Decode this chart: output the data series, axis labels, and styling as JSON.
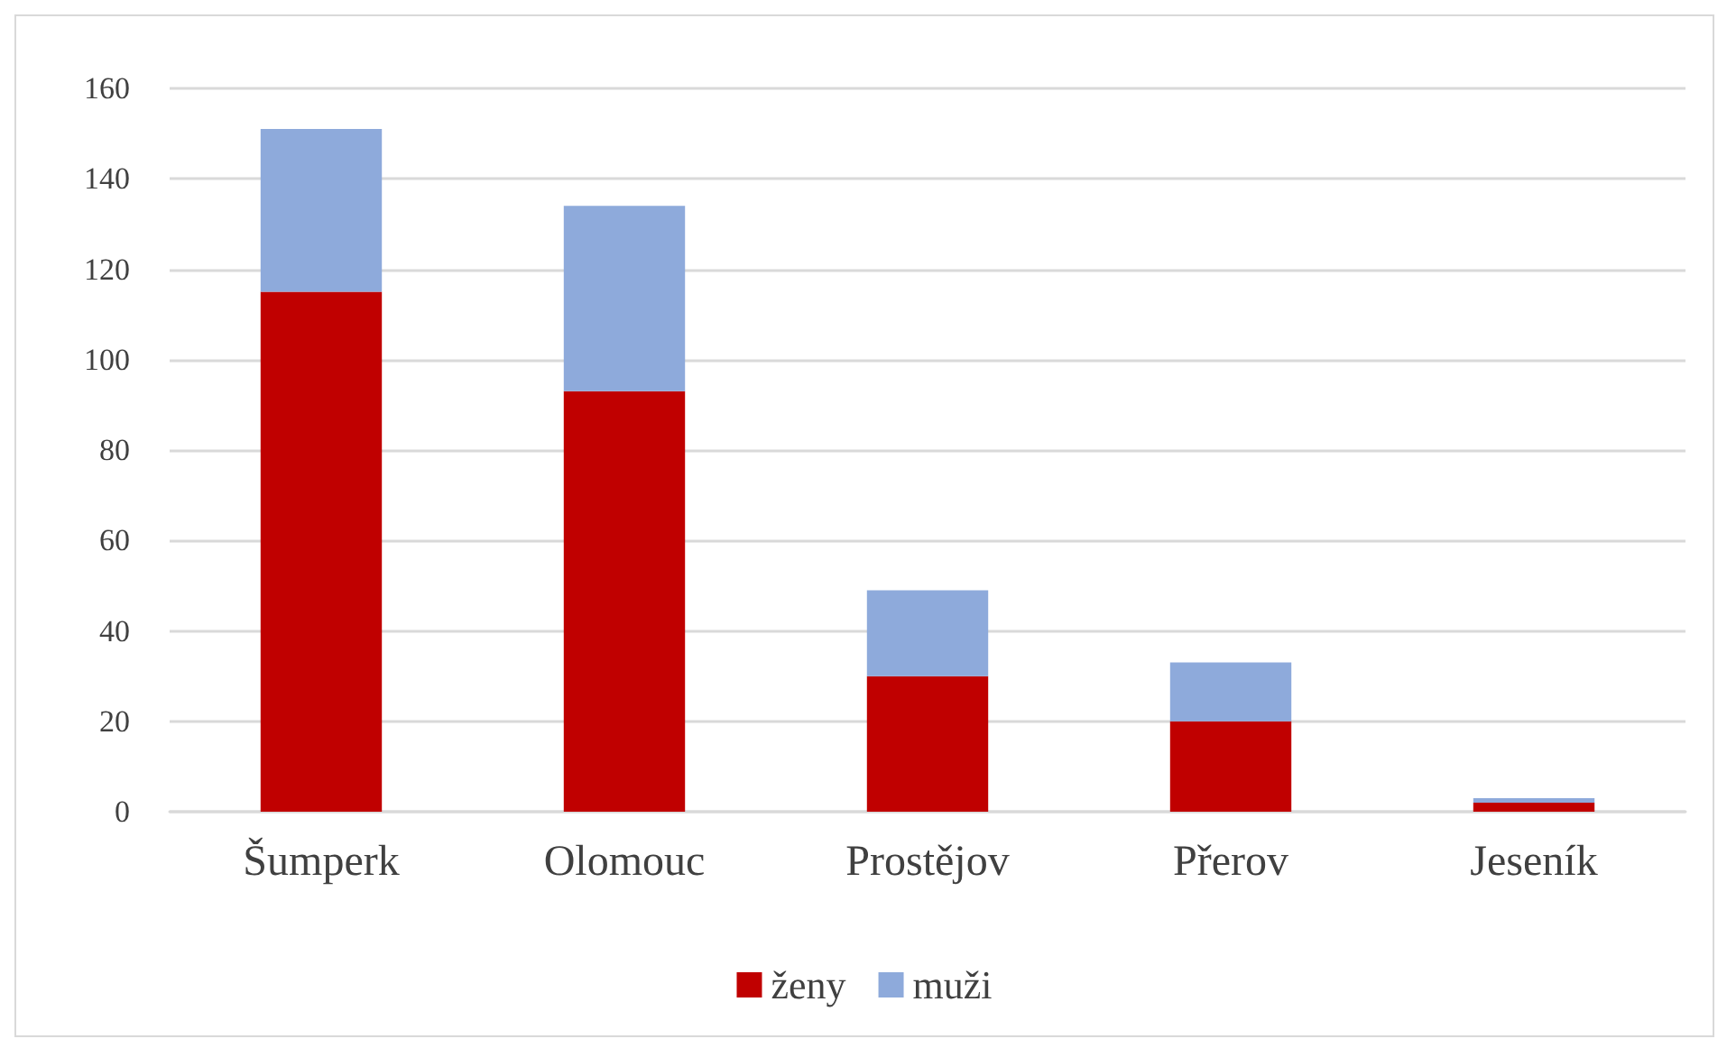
{
  "chart_data": {
    "type": "bar",
    "stacked": true,
    "categories": [
      "Šumperk",
      "Olomouc",
      "Prostějov",
      "Přerov",
      "Jeseník"
    ],
    "series": [
      {
        "name": "ženy",
        "color": "#c00000",
        "values": [
          115,
          93,
          30,
          20,
          2
        ]
      },
      {
        "name": "muži",
        "color": "#8eaadb",
        "values": [
          36,
          41,
          19,
          13,
          1
        ]
      }
    ],
    "ylim": [
      0,
      160
    ],
    "yticks": [
      0,
      20,
      40,
      60,
      80,
      100,
      120,
      140,
      160
    ],
    "grid": "y",
    "legend": "bottom"
  }
}
